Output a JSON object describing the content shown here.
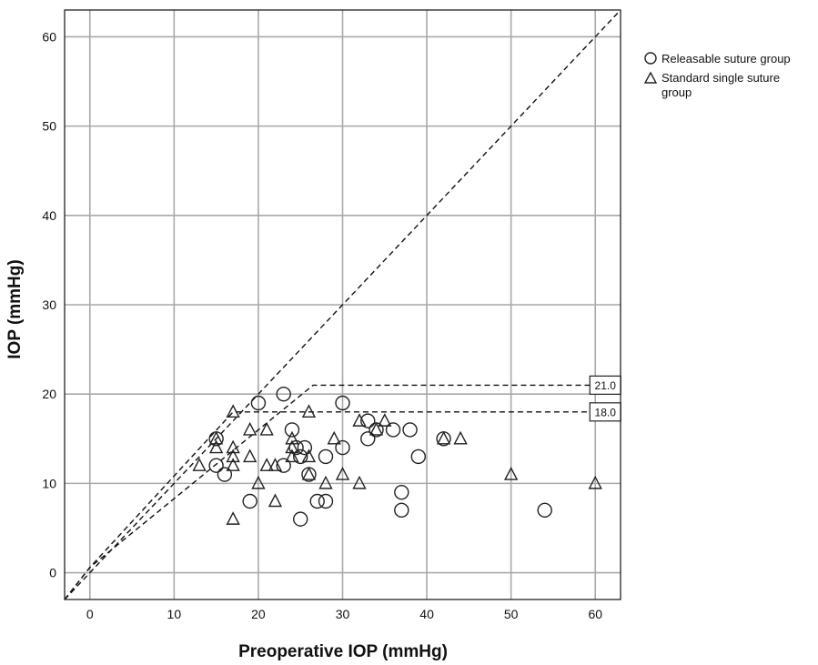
{
  "chart_data": {
    "type": "scatter",
    "title": "",
    "xlabel": "Preoperative IOP (mmHg)",
    "ylabel": "IOP (mmHg)",
    "xlim": [
      -3,
      63
    ],
    "ylim": [
      -3,
      63
    ],
    "x_ticks": [
      0,
      10,
      20,
      30,
      40,
      50,
      60
    ],
    "y_ticks": [
      0,
      10,
      20,
      30,
      40,
      50,
      60
    ],
    "grid": true,
    "legend": {
      "position": "outside-top-right",
      "entries": [
        {
          "label": "Releasable suture group",
          "marker": "circle"
        },
        {
          "label": "Standard single suture group",
          "marker": "triangle"
        }
      ]
    },
    "series": [
      {
        "name": "Releasable suture group",
        "marker": "circle",
        "points": [
          [
            15,
            15
          ],
          [
            15,
            12
          ],
          [
            16,
            11
          ],
          [
            19,
            8
          ],
          [
            20,
            19
          ],
          [
            23,
            20
          ],
          [
            23,
            12
          ],
          [
            24,
            16
          ],
          [
            24.5,
            14
          ],
          [
            25,
            6
          ],
          [
            25,
            13
          ],
          [
            25.5,
            14
          ],
          [
            26,
            11
          ],
          [
            27,
            8
          ],
          [
            28,
            8
          ],
          [
            28,
            13
          ],
          [
            30,
            19
          ],
          [
            30,
            14
          ],
          [
            33,
            15
          ],
          [
            33,
            17
          ],
          [
            34,
            16
          ],
          [
            36,
            16
          ],
          [
            37,
            9
          ],
          [
            37,
            7
          ],
          [
            38,
            16
          ],
          [
            39,
            13
          ],
          [
            42,
            15
          ],
          [
            54,
            7
          ]
        ]
      },
      {
        "name": "Standard single suture group",
        "marker": "triangle",
        "points": [
          [
            13,
            12
          ],
          [
            15,
            14
          ],
          [
            15,
            15
          ],
          [
            17,
            18
          ],
          [
            17,
            14
          ],
          [
            17,
            13
          ],
          [
            17,
            12
          ],
          [
            17,
            6
          ],
          [
            19,
            16
          ],
          [
            19,
            13
          ],
          [
            20,
            10
          ],
          [
            21,
            16
          ],
          [
            21,
            12
          ],
          [
            22,
            12
          ],
          [
            22,
            8
          ],
          [
            24,
            15
          ],
          [
            24,
            14
          ],
          [
            24,
            13
          ],
          [
            26,
            18
          ],
          [
            26,
            13
          ],
          [
            26,
            11
          ],
          [
            28,
            10
          ],
          [
            29,
            15
          ],
          [
            30,
            11
          ],
          [
            32,
            17
          ],
          [
            32,
            10
          ],
          [
            34,
            16
          ],
          [
            35,
            17
          ],
          [
            42,
            15
          ],
          [
            44,
            15
          ],
          [
            50,
            11
          ],
          [
            60,
            10
          ]
        ]
      }
    ],
    "reference_lines": [
      {
        "kind": "identity",
        "points": [
          [
            -3,
            -3
          ],
          [
            63,
            63
          ]
        ]
      },
      {
        "kind": "threshold",
        "label": "21.0",
        "points": [
          [
            -3,
            -3
          ],
          [
            0,
            0.6
          ],
          [
            26.5,
            21
          ],
          [
            60,
            21
          ]
        ]
      },
      {
        "kind": "threshold",
        "label": "18.0",
        "points": [
          [
            -3,
            -3
          ],
          [
            0,
            0.6
          ],
          [
            17,
            18
          ],
          [
            60,
            18
          ]
        ]
      }
    ]
  }
}
